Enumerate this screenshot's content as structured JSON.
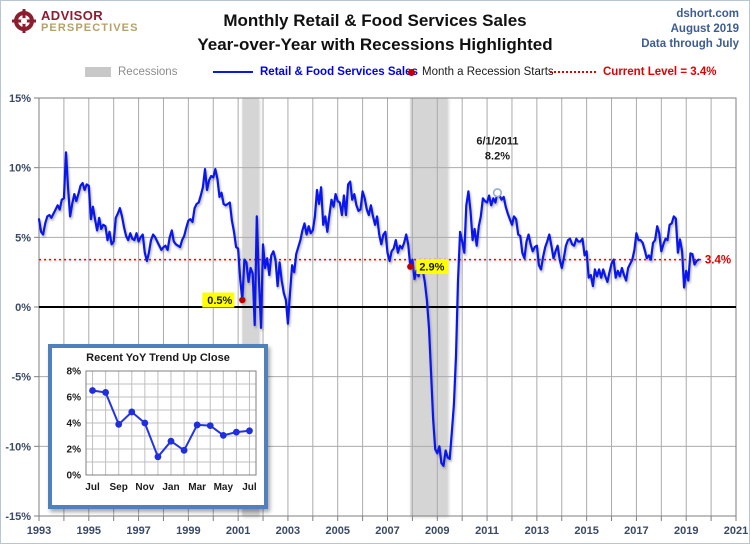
{
  "header": {
    "logo_line1": "ADVISOR",
    "logo_line2": "PERSPECTIVES",
    "title_line1": "Monthly Retail & Food Services Sales",
    "title_line2": "Year-over-Year with Recessions Highlighted",
    "source": "dshort.com",
    "date": "August 2019",
    "data_through": "Data through July"
  },
  "legend": {
    "recessions": "Recessions",
    "series": "Retail & Food Services Sales",
    "recession_start": "Month a Recession Starts",
    "current_level": "Current Level = 3.4%"
  },
  "colors": {
    "series_blue": "#0A16EE",
    "recession_gray": "#D5D5D5",
    "current_red": "#E80000",
    "marker_dark_red": "#C00000",
    "grid_gray": "#ABABAB",
    "border_gray": "#7F7F7F",
    "axis_label": "#3A4A66",
    "highlight_yellow": "#FFFF00",
    "inset_border": "#4F81BD"
  },
  "chart_data": {
    "type": "line",
    "title": "Monthly Retail & Food Services Sales Year-over-Year with Recessions Highlighted",
    "x_axis": {
      "min": 1993,
      "max": 2021,
      "label_years": [
        1993,
        1995,
        1997,
        1999,
        2001,
        2003,
        2005,
        2007,
        2009,
        2011,
        2013,
        2015,
        2017,
        2019,
        2021
      ]
    },
    "y_axis": {
      "min": -15,
      "max": 15,
      "step": 5,
      "tick_format": "%",
      "ticks": [
        15,
        10,
        5,
        0,
        -5,
        -10,
        -15
      ]
    },
    "grid": true,
    "recession_bands": [
      [
        2001.167,
        2001.833
      ],
      [
        2007.917,
        2009.417
      ]
    ],
    "current_level": 3.4,
    "current_line_end": 2019.62,
    "series_name": "Retail & Food Services Sales YoY %",
    "series_start": {
      "year": 1993,
      "month": "Jan"
    },
    "monthly_yoy": {
      "1993": [
        6.3,
        5.4,
        5.2,
        6.0,
        6.5,
        6.6,
        6.4,
        6.7,
        7.0,
        7.3,
        7.0,
        7.7
      ],
      "1994": [
        7.8,
        11.1,
        8.6,
        6.5,
        7.4,
        8.1,
        7.6,
        8.1,
        8.7,
        8.9,
        8.4,
        8.8
      ],
      "1995": [
        8.7,
        6.3,
        7.2,
        6.3,
        5.5,
        6.4,
        5.6,
        5.9,
        5.8,
        4.8,
        5.4,
        4.5
      ],
      "1996": [
        4.7,
        6.4,
        6.7,
        7.1,
        6.5,
        5.7,
        5.1,
        4.8,
        5.3,
        4.9,
        4.8,
        5.3
      ],
      "1997": [
        4.7,
        5.0,
        5.2,
        3.9,
        3.3,
        3.9,
        4.8,
        5.2,
        5.0,
        4.7,
        4.4,
        4.1
      ],
      "1998": [
        4.3,
        4.4,
        4.1,
        5.0,
        5.5,
        4.7,
        4.5,
        4.4,
        4.3,
        4.8,
        5.1,
        5.7
      ],
      "1999": [
        6.2,
        6.3,
        6.1,
        7.1,
        7.4,
        7.5,
        8.0,
        8.6,
        9.9,
        8.4,
        9.1,
        9.4
      ],
      "2000": [
        9.3,
        9.9,
        9.2,
        7.9,
        8.2,
        7.4,
        7.3,
        7.4,
        7.5,
        6.2,
        5.4,
        4.3
      ],
      "2001": [
        4.2,
        2.0,
        0.5,
        3.4,
        3.2,
        1.8,
        2.8,
        2.4,
        -1.3,
        6.5,
        2.0,
        -1.5
      ],
      "2002": [
        4.5,
        2.8,
        3.5,
        2.3,
        3.7,
        4.0,
        3.4,
        1.5,
        3.2,
        1.9,
        1.0,
        0.5
      ],
      "2003": [
        -1.2,
        1.0,
        3.0,
        2.5,
        3.8,
        4.3,
        4.8,
        5.5,
        6.0,
        5.2,
        5.8,
        5.3
      ],
      "2004": [
        5.5,
        6.5,
        8.4,
        7.4,
        8.6,
        5.9,
        6.5,
        5.4,
        6.6,
        7.7,
        7.2,
        8.1
      ],
      "2005": [
        7.6,
        7.5,
        6.6,
        8.0,
        6.6,
        8.8,
        9.0,
        7.7,
        8.1,
        7.3,
        6.9,
        7.0
      ],
      "2006": [
        8.3,
        7.8,
        7.0,
        6.6,
        7.3,
        6.5,
        5.9,
        6.5,
        5.2,
        4.5,
        5.2,
        5.4
      ],
      "2007": [
        3.9,
        3.3,
        4.0,
        4.2,
        4.8,
        3.9,
        4.4,
        4.2,
        4.6,
        5.2,
        4.5,
        2.9
      ],
      "2008": [
        3.4,
        2.0,
        2.6,
        2.2,
        3.1,
        2.6,
        1.8,
        0.5,
        -1.5,
        -4.8,
        -8.0,
        -10.2
      ],
      "2009": [
        -10.5,
        -10.0,
        -11.2,
        -11.4,
        -10.3,
        -10.8,
        -10.9,
        -9.0,
        -7.0,
        -3.5,
        1.9,
        5.4
      ],
      "2010": [
        4.7,
        3.9,
        7.3,
        8.3,
        6.9,
        4.8,
        5.6,
        4.4,
        5.8,
        6.5,
        7.8,
        7.6
      ],
      "2011": [
        7.5,
        8.0,
        7.3,
        7.8,
        7.5,
        8.2,
        8.0,
        7.7,
        7.9,
        7.2,
        6.7,
        6.3
      ],
      "2012": [
        5.9,
        6.5,
        6.3,
        5.2,
        5.1,
        3.9,
        3.5,
        4.7,
        5.2,
        4.5,
        4.0,
        4.3
      ],
      "2013": [
        4.4,
        3.0,
        2.7,
        3.6,
        4.3,
        4.7,
        5.2,
        4.4,
        3.5,
        4.0,
        4.4,
        3.4
      ],
      "2014": [
        2.8,
        3.5,
        4.4,
        4.8,
        4.9,
        4.5,
        4.4,
        4.9,
        4.7,
        4.7,
        4.9,
        3.7
      ],
      "2015": [
        4.0,
        2.1,
        2.3,
        1.5,
        2.7,
        2.2,
        2.7,
        2.1,
        2.7,
        2.2,
        1.8,
        2.5
      ],
      "2016": [
        3.1,
        3.4,
        2.1,
        2.6,
        2.2,
        2.8,
        2.3,
        1.9,
        2.8,
        3.1,
        3.4,
        4.1
      ],
      "2017": [
        5.3,
        4.8,
        4.8,
        4.6,
        4.1,
        3.5,
        3.7,
        3.4,
        4.6,
        4.8,
        5.8,
        5.3
      ],
      "2018": [
        4.0,
        4.5,
        4.9,
        4.8,
        5.9,
        6.0,
        6.5,
        6.35,
        3.9,
        4.85,
        4.0,
        1.4
      ],
      "2019": [
        2.6,
        1.9,
        3.85,
        3.8,
        3.05,
        3.3,
        3.4
      ]
    },
    "annotations": [
      {
        "type": "dot-label",
        "x": 2001.167,
        "y": 0.5,
        "label": "0.5%",
        "side": "left"
      },
      {
        "type": "dot-label",
        "x": 2007.917,
        "y": 2.9,
        "label": "2.9%",
        "side": "right"
      },
      {
        "type": "peak",
        "x": 2011.417,
        "y": 8.2,
        "line1": "6/1/2011",
        "line2": "8.2%"
      },
      {
        "type": "current",
        "label": "3.4%",
        "x": 2019.75,
        "y": 3.4
      }
    ],
    "inset": {
      "type": "line",
      "title": "Recent YoY Trend Up Close",
      "x_labels": [
        "Jul",
        "Sep",
        "Nov",
        "Jan",
        "Mar",
        "May",
        "Jul"
      ],
      "months": [
        "Jul",
        "Aug",
        "Sep",
        "Oct",
        "Nov",
        "Dec",
        "Jan",
        "Feb",
        "Mar",
        "Apr",
        "May",
        "Jun",
        "Jul"
      ],
      "values": [
        6.5,
        6.35,
        3.9,
        4.85,
        4.0,
        1.4,
        2.6,
        1.9,
        3.85,
        3.8,
        3.05,
        3.3,
        3.4
      ],
      "y_ticks": [
        8,
        6,
        4,
        2,
        0
      ],
      "ylim": [
        0,
        8
      ]
    }
  }
}
